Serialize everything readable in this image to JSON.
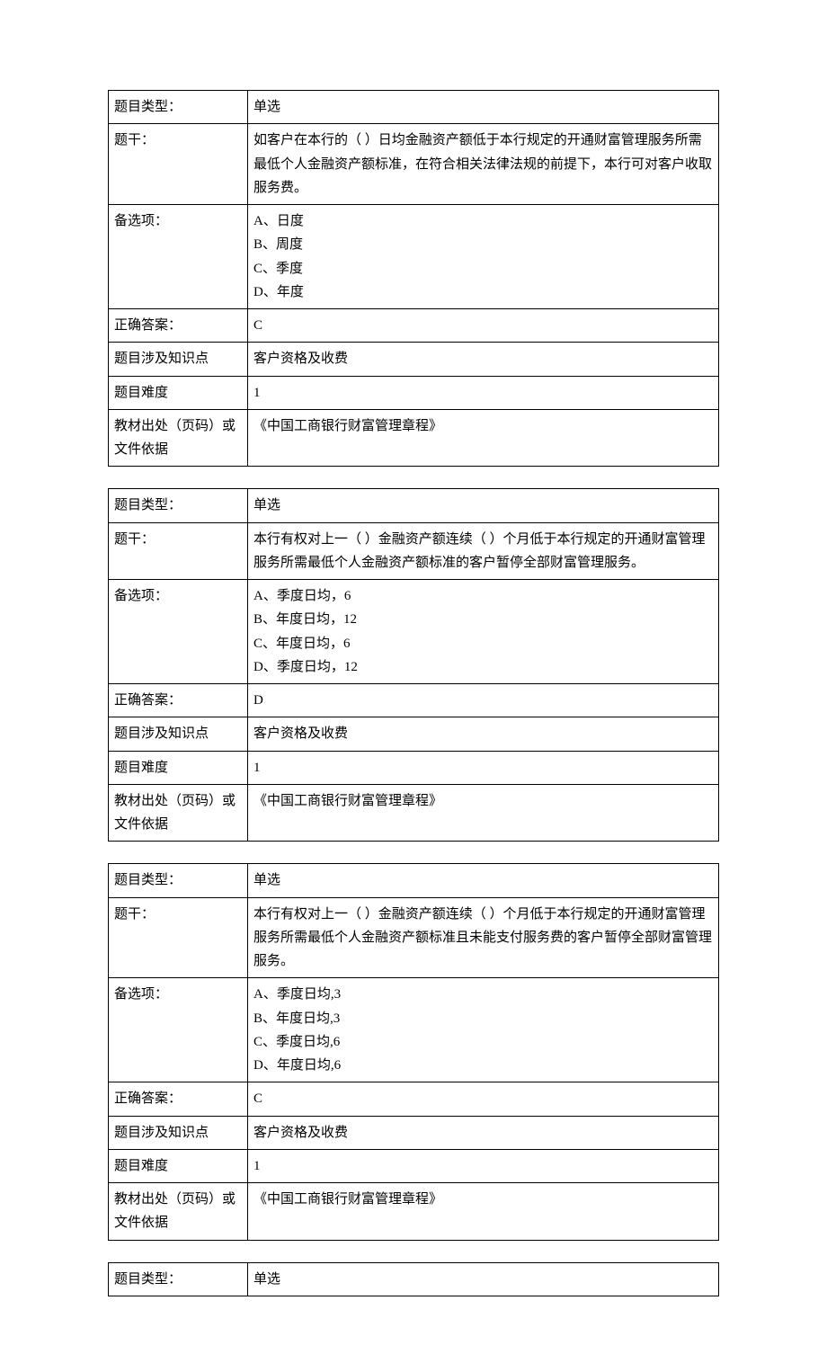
{
  "labels": {
    "type": "题目类型：",
    "stem": "题干：",
    "options": "备选项：",
    "answer": "正确答案：",
    "knowledge": "题目涉及知识点",
    "difficulty": "题目难度",
    "source": "教材出处（页码）或文件依据"
  },
  "questions": [
    {
      "type": "单选",
      "stem": "如客户在本行的（  ）日均金融资产额低于本行规定的开通财富管理服务所需最低个人金融资产额标准，在符合相关法律法规的前提下，本行可对客户收取服务费。",
      "options": [
        "A、日度",
        "B、周度",
        "C、季度",
        "D、年度"
      ],
      "answer": "C",
      "knowledge": "客户资格及收费",
      "difficulty": "1",
      "source": "《中国工商银行财富管理章程》"
    },
    {
      "type": "单选",
      "stem": "本行有权对上一（  ）金融资产额连续（  ）个月低于本行规定的开通财富管理服务所需最低个人金融资产额标准的客户暂停全部财富管理服务。",
      "options": [
        "A、季度日均，6",
        "B、年度日均，12",
        "C、年度日均，6",
        "D、季度日均，12"
      ],
      "answer": "D",
      "knowledge": "客户资格及收费",
      "difficulty": "1",
      "source": "《中国工商银行财富管理章程》"
    },
    {
      "type": "单选",
      "stem": "本行有权对上一（  ）金融资产额连续（  ）个月低于本行规定的开通财富管理服务所需最低个人金融资产额标准且未能支付服务费的客户暂停全部财富管理服务。",
      "options": [
        "A、季度日均,3",
        "B、年度日均,3",
        "C、季度日均,6",
        "D、年度日均,6"
      ],
      "answer": "C",
      "knowledge": "客户资格及收费",
      "difficulty": "1",
      "source": "《中国工商银行财富管理章程》"
    }
  ],
  "partial": {
    "type": "单选"
  }
}
